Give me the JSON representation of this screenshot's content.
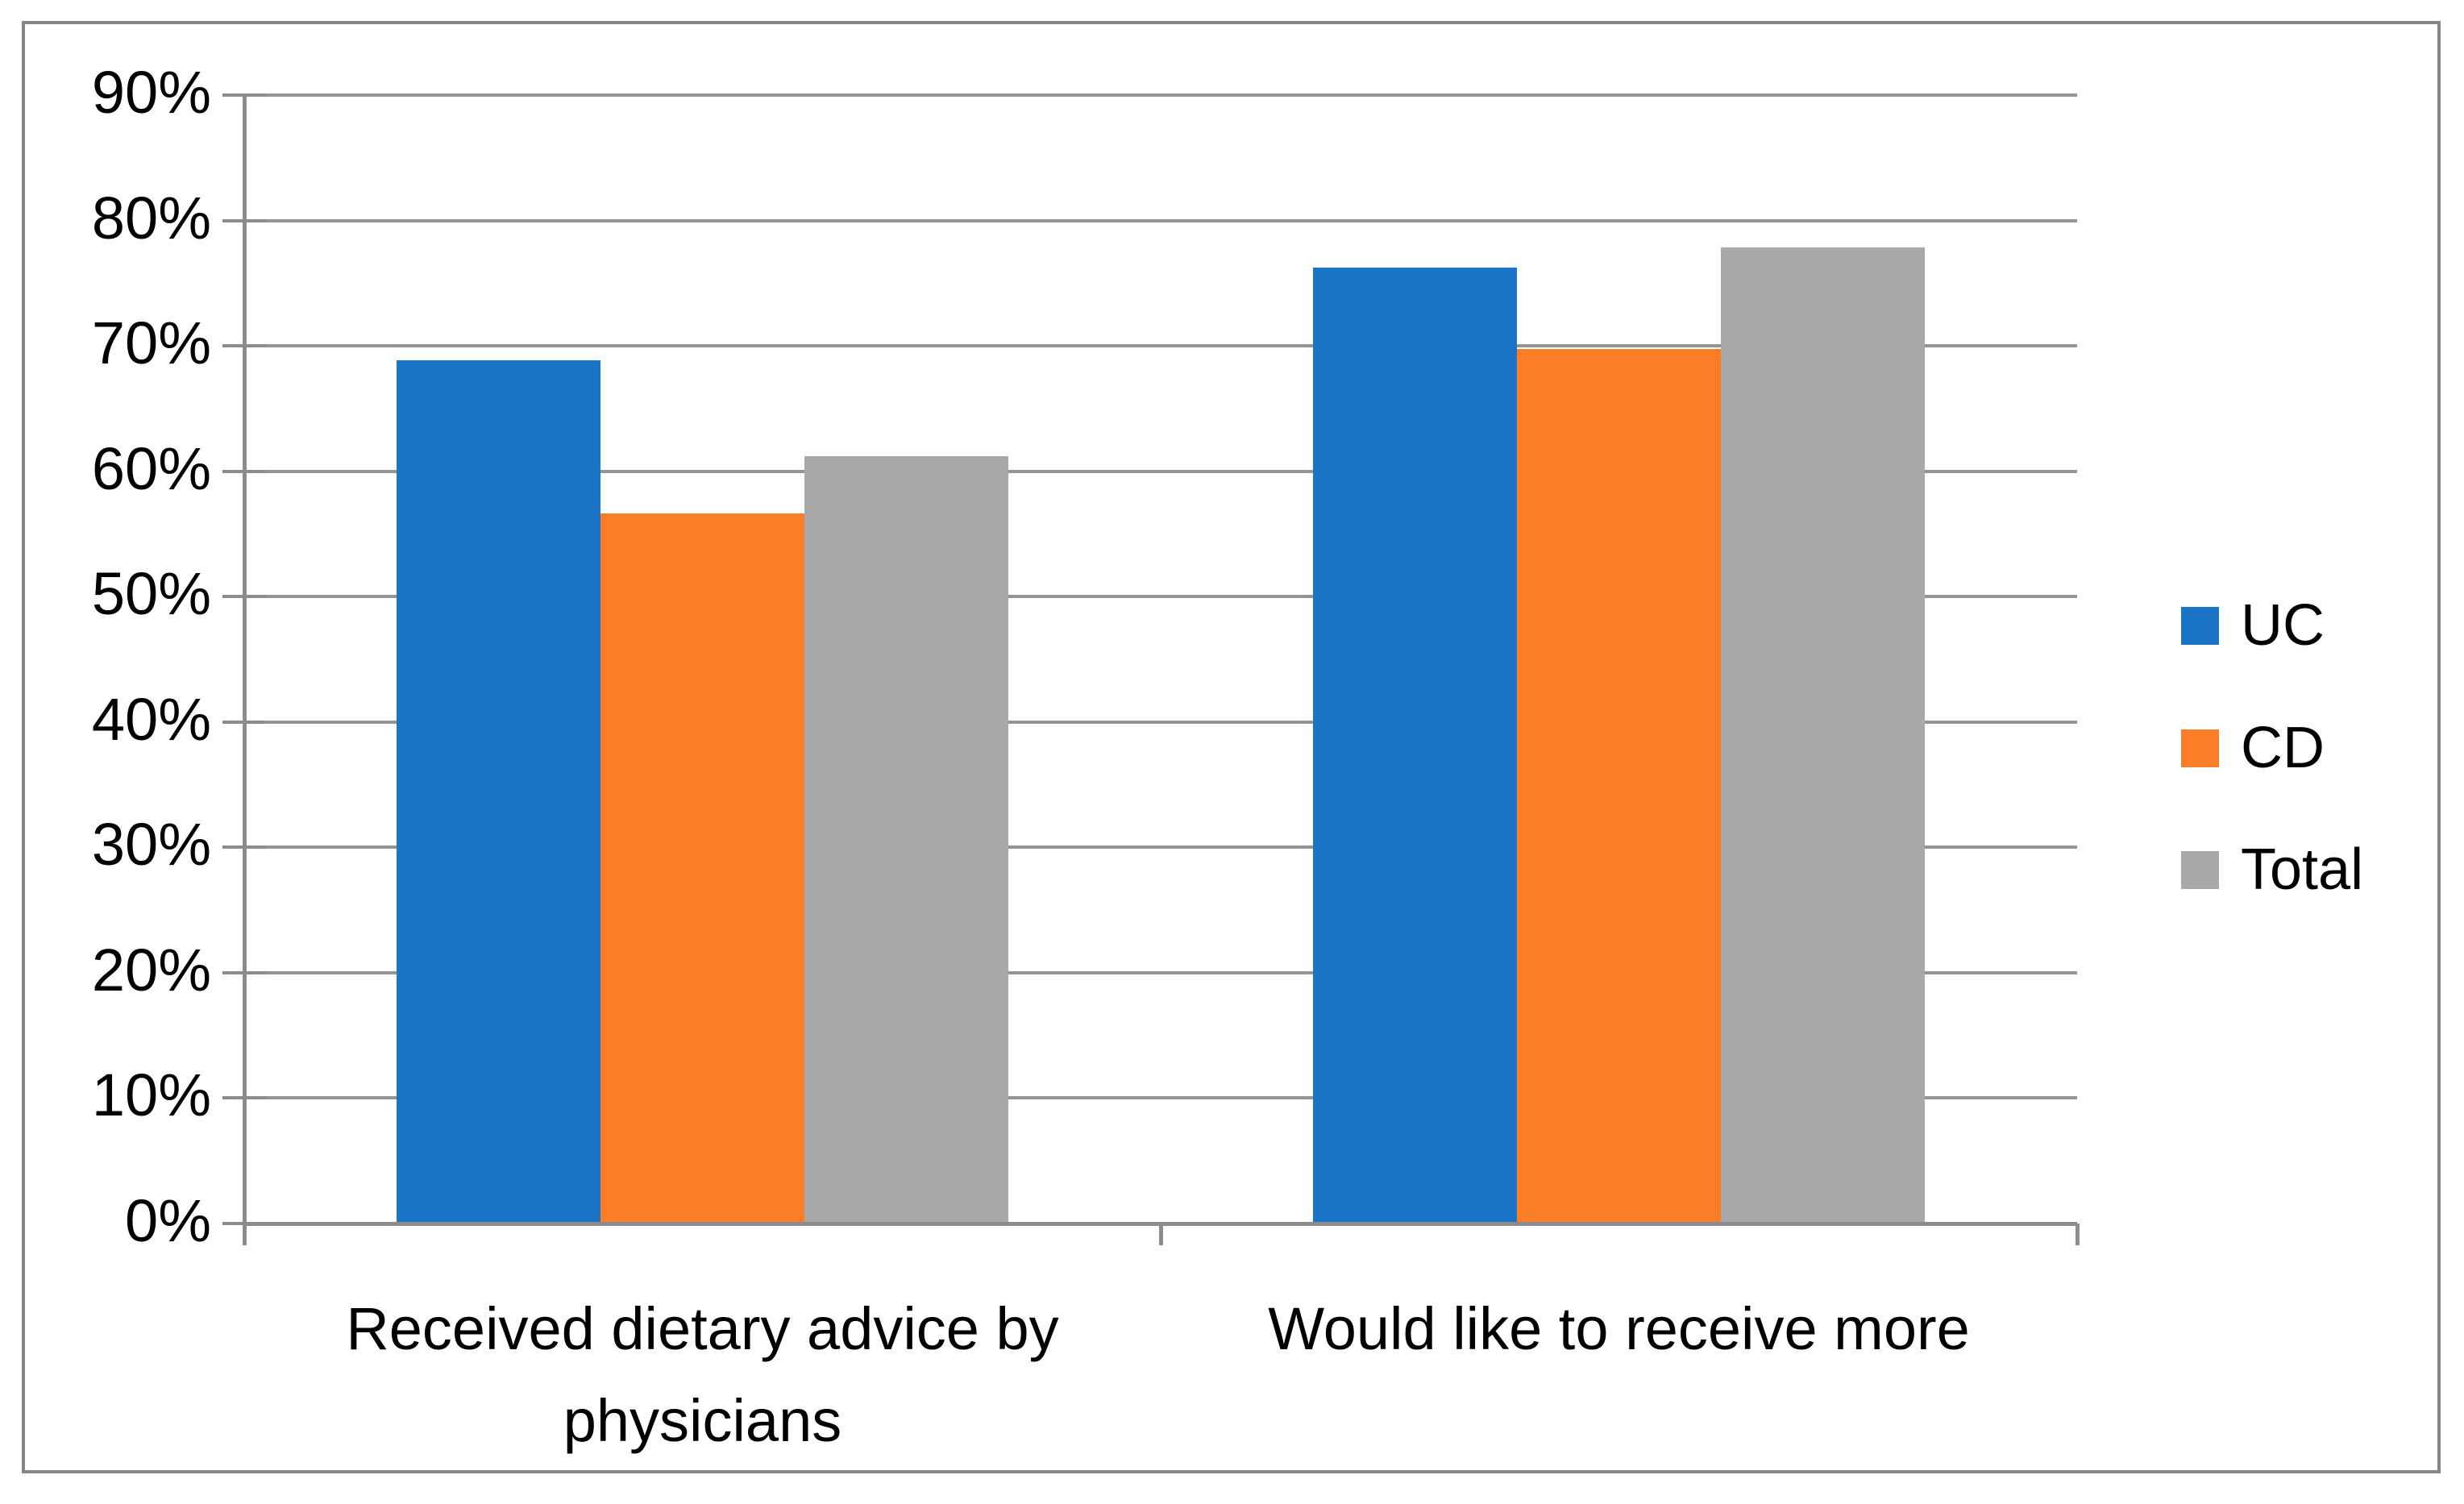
{
  "chart_data": {
    "type": "bar",
    "title": "",
    "categories": [
      "Received dietary advice by physicians",
      "Would like to receive more"
    ],
    "series": [
      {
        "name": "UC",
        "color": "#1b74c5",
        "values": [
          68.7,
          76.1
        ]
      },
      {
        "name": "CD",
        "color": "#fc7d27",
        "values": [
          56.5,
          69.6
        ]
      },
      {
        "name": "Total",
        "color": "#a9a8a8",
        "values": [
          61.1,
          77.7
        ]
      }
    ],
    "xlabel": "",
    "ylabel": "",
    "ylim": [
      0,
      90
    ],
    "ytick_step": 10,
    "ytick_labels": [
      "90%",
      "80%",
      "70%",
      "60%",
      "50%",
      "40%",
      "30%",
      "20%",
      "10%",
      "0%"
    ],
    "grid": true,
    "legend_position": "right-middle",
    "colors": {
      "gridline": "#949494",
      "axis": "#8c8c8c",
      "border": "#868686",
      "text": "#000000"
    }
  }
}
